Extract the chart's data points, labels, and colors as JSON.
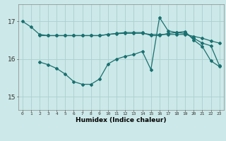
{
  "title": "",
  "xlabel": "Humidex (Indice chaleur)",
  "ylabel": "",
  "background_color": "#cce8e8",
  "grid_color": "#aacfcf",
  "line_color": "#1a7070",
  "x_ticks": [
    0,
    1,
    2,
    3,
    4,
    5,
    6,
    7,
    8,
    9,
    10,
    11,
    12,
    13,
    14,
    15,
    16,
    17,
    18,
    19,
    20,
    21,
    22,
    23
  ],
  "y_ticks": [
    15,
    16,
    17
  ],
  "xlim": [
    -0.5,
    23.5
  ],
  "ylim": [
    14.65,
    17.45
  ],
  "series1_x": [
    0,
    1,
    2,
    3,
    4,
    5,
    6,
    7,
    8,
    9,
    10,
    11,
    12,
    13,
    14,
    15,
    16,
    17,
    18,
    19,
    20,
    21,
    22,
    23
  ],
  "series1_y": [
    17.0,
    16.85,
    16.65,
    16.62,
    16.62,
    16.62,
    16.62,
    16.62,
    16.62,
    16.62,
    16.65,
    16.67,
    16.68,
    16.68,
    16.68,
    16.65,
    16.65,
    16.65,
    16.65,
    16.65,
    16.6,
    16.55,
    16.48,
    16.42
  ],
  "series2_x": [
    2,
    3,
    4,
    5,
    6,
    7,
    8,
    9,
    10,
    11,
    12,
    13,
    14,
    15,
    16,
    17,
    18,
    19,
    20,
    21,
    22,
    23
  ],
  "series2_y": [
    16.62,
    16.62,
    16.62,
    16.62,
    16.62,
    16.62,
    16.62,
    16.62,
    16.65,
    16.68,
    16.7,
    16.7,
    16.7,
    16.62,
    16.62,
    16.68,
    16.7,
    16.68,
    16.55,
    16.42,
    16.35,
    15.82
  ],
  "series3_x": [
    2,
    3,
    4,
    5,
    6,
    7,
    8,
    9,
    10,
    11,
    12,
    13,
    14,
    15,
    16,
    17,
    18,
    19,
    20,
    21,
    22,
    23
  ],
  "series3_y": [
    15.92,
    15.85,
    15.75,
    15.6,
    15.4,
    15.33,
    15.33,
    15.47,
    15.87,
    16.0,
    16.07,
    16.12,
    16.2,
    15.72,
    17.1,
    16.75,
    16.7,
    16.73,
    16.5,
    16.33,
    15.95,
    15.8
  ]
}
